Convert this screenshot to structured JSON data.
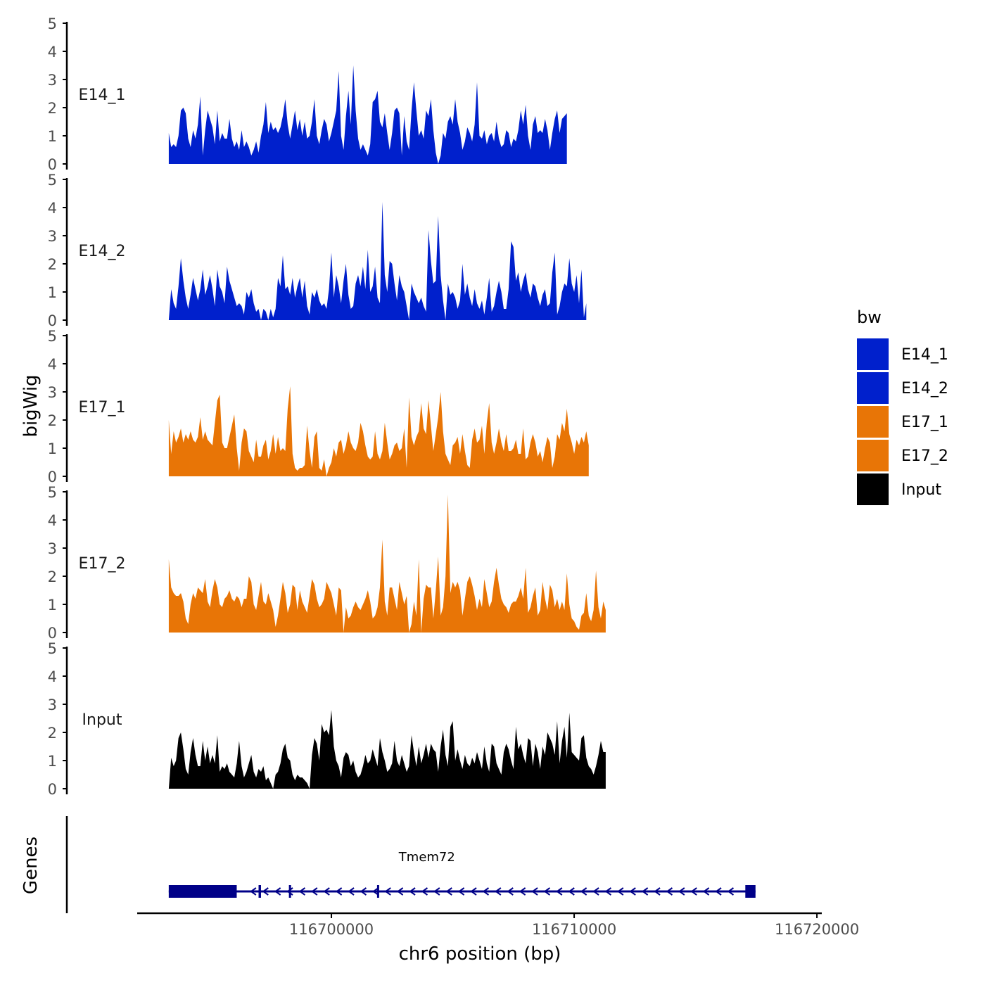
{
  "chart_data": {
    "type": "area",
    "ylabel": "bigWig",
    "genes_label": "Genes",
    "xlabel": "chr6 position (bp)",
    "xlim": [
      116692000,
      116720200
    ],
    "x_ticks": [
      {
        "value": 116700000,
        "label": "116700000"
      },
      {
        "value": 116710000,
        "label": "116710000"
      },
      {
        "value": 116720000,
        "label": "116720000"
      }
    ],
    "ylim": [
      0,
      5
    ],
    "y_ticks": [
      {
        "value": 0,
        "label": "0"
      },
      {
        "value": 1,
        "label": "1"
      },
      {
        "value": 2,
        "label": "2"
      },
      {
        "value": 3,
        "label": "3"
      },
      {
        "value": 4,
        "label": "4"
      },
      {
        "value": 5,
        "label": "5"
      }
    ],
    "x_start": 116693300,
    "x_step": 100,
    "legend": {
      "title": "bw",
      "position": "right"
    },
    "series": [
      {
        "name": "E14_1",
        "color": "#0020CC",
        "values": [
          1.1,
          0.6,
          0.7,
          0.6,
          1.0,
          1.9,
          2.0,
          1.8,
          0.9,
          0.6,
          1.2,
          0.9,
          1.4,
          2.4,
          0.3,
          1.2,
          1.9,
          1.6,
          1.3,
          0.7,
          1.9,
          0.8,
          1.1,
          0.9,
          0.9,
          1.6,
          0.9,
          0.6,
          0.8,
          0.5,
          1.2,
          0.6,
          0.8,
          0.6,
          0.3,
          0.5,
          0.8,
          0.4,
          1.0,
          1.4,
          2.2,
          1.1,
          1.5,
          1.2,
          1.3,
          1.1,
          1.3,
          1.7,
          2.3,
          1.4,
          0.9,
          1.4,
          1.9,
          1.2,
          1.6,
          1.0,
          1.5,
          0.9,
          1.0,
          1.5,
          2.3,
          1.0,
          0.7,
          1.2,
          1.6,
          1.4,
          0.8,
          1.1,
          1.5,
          1.9,
          3.3,
          1.0,
          0.5,
          1.7,
          2.6,
          1.4,
          3.5,
          1.9,
          0.9,
          0.5,
          0.7,
          0.5,
          0.3,
          0.7,
          2.2,
          2.3,
          2.6,
          1.5,
          1.3,
          1.8,
          1.1,
          0.5,
          1.1,
          1.9,
          2.0,
          1.8,
          0.3,
          1.7,
          0.8,
          0.5,
          1.9,
          2.9,
          1.9,
          1.0,
          1.2,
          0.9,
          1.9,
          1.7,
          2.3,
          1.2,
          0.4,
          0.0,
          0.3,
          1.1,
          0.9,
          1.5,
          1.7,
          1.4,
          2.3,
          1.5,
          1.1,
          0.5,
          0.8,
          1.3,
          1.1,
          0.8,
          1.4,
          2.9,
          1.0,
          0.9,
          1.2,
          0.7,
          1.0,
          1.1,
          0.8,
          1.5,
          0.9,
          0.6,
          0.7,
          1.2,
          1.1,
          0.6,
          0.9,
          0.8,
          1.2,
          1.9,
          1.4,
          2.1,
          1.0,
          0.5,
          1.4,
          1.7,
          1.1,
          1.2,
          1.1,
          1.6,
          1.2,
          0.5,
          1.1,
          1.6,
          1.9,
          1.1,
          1.6,
          1.7,
          1.8
        ]
      },
      {
        "name": "E14_2",
        "color": "#0020CC",
        "values": [
          0.0,
          1.1,
          0.6,
          0.4,
          1.2,
          2.2,
          1.4,
          0.8,
          0.4,
          0.9,
          1.5,
          1.1,
          0.7,
          1.1,
          1.8,
          0.9,
          1.2,
          1.6,
          1.1,
          0.5,
          1.8,
          1.2,
          1.0,
          0.6,
          1.9,
          1.4,
          1.1,
          0.8,
          0.5,
          0.6,
          0.5,
          0.2,
          1.0,
          0.8,
          1.1,
          0.6,
          0.3,
          0.4,
          0.0,
          0.4,
          0.3,
          0.0,
          0.4,
          0.1,
          0.4,
          1.5,
          1.2,
          2.3,
          1.1,
          1.2,
          0.9,
          1.5,
          0.8,
          1.2,
          1.5,
          0.8,
          1.4,
          0.5,
          0.2,
          1.0,
          0.8,
          1.1,
          0.7,
          0.5,
          0.6,
          0.4,
          1.1,
          2.4,
          0.8,
          1.6,
          1.2,
          0.6,
          1.4,
          2.0,
          0.9,
          0.4,
          0.5,
          1.3,
          1.6,
          1.2,
          1.9,
          1.1,
          2.5,
          1.0,
          1.2,
          1.9,
          0.8,
          0.6,
          4.2,
          1.6,
          1.0,
          2.1,
          2.0,
          1.3,
          0.7,
          1.6,
          1.2,
          1.0,
          0.5,
          0.0,
          1.3,
          1.0,
          0.8,
          0.6,
          0.8,
          0.5,
          0.3,
          3.2,
          2.1,
          1.3,
          1.4,
          3.7,
          1.6,
          0.7,
          0.0,
          1.3,
          0.9,
          1.0,
          0.8,
          0.4,
          0.7,
          2.0,
          0.9,
          1.3,
          0.8,
          0.5,
          1.1,
          0.6,
          0.4,
          0.7,
          0.2,
          0.8,
          1.5,
          0.3,
          0.5,
          1.0,
          1.4,
          1.0,
          0.4,
          0.4,
          1.1,
          2.8,
          2.6,
          1.4,
          1.7,
          1.0,
          1.4,
          1.7,
          1.1,
          0.8,
          1.3,
          1.2,
          0.8,
          0.5,
          0.9,
          1.1,
          0.5,
          0.6,
          1.7,
          2.4,
          0.2,
          0.5,
          1.0,
          1.3,
          1.2,
          2.2,
          1.3,
          1.0,
          1.6,
          0.6,
          1.8,
          0.1,
          0.6
        ]
      },
      {
        "name": "E17_1",
        "color": "#E87506",
        "values": [
          2.0,
          0.8,
          1.6,
          1.2,
          1.4,
          1.7,
          1.2,
          1.5,
          1.3,
          1.6,
          1.3,
          1.2,
          1.4,
          2.1,
          1.3,
          1.6,
          1.3,
          1.2,
          1.1,
          1.9,
          2.7,
          2.9,
          1.2,
          1.0,
          1.0,
          1.4,
          1.8,
          2.2,
          1.0,
          0.2,
          1.2,
          1.7,
          1.6,
          0.9,
          0.7,
          0.5,
          1.3,
          0.7,
          0.7,
          1.1,
          1.3,
          0.6,
          0.9,
          1.5,
          0.8,
          1.4,
          0.9,
          1.0,
          0.9,
          2.4,
          3.2,
          0.8,
          0.3,
          0.2,
          0.3,
          0.3,
          0.4,
          1.8,
          0.9,
          0.3,
          1.4,
          1.6,
          0.3,
          0.2,
          0.6,
          0.0,
          0.3,
          0.5,
          1.0,
          0.7,
          1.2,
          1.3,
          0.8,
          1.1,
          1.6,
          1.2,
          1.0,
          0.9,
          1.2,
          1.9,
          1.6,
          1.1,
          0.7,
          0.6,
          0.7,
          1.6,
          0.8,
          0.6,
          0.9,
          1.9,
          1.2,
          0.6,
          0.8,
          1.1,
          1.2,
          0.9,
          1.0,
          1.7,
          0.3,
          2.8,
          1.4,
          1.1,
          1.4,
          1.6,
          2.6,
          1.7,
          1.5,
          2.7,
          1.8,
          0.9,
          1.5,
          2.1,
          3.0,
          1.6,
          0.8,
          0.6,
          0.4,
          1.1,
          1.2,
          1.4,
          0.8,
          1.5,
          0.9,
          0.4,
          0.3,
          1.3,
          1.7,
          1.2,
          1.3,
          1.8,
          0.8,
          1.9,
          2.6,
          1.2,
          0.8,
          1.2,
          1.7,
          1.2,
          0.9,
          1.5,
          0.9,
          0.9,
          1.0,
          1.3,
          0.8,
          0.8,
          1.7,
          0.6,
          0.7,
          1.2,
          1.5,
          1.2,
          0.7,
          0.9,
          0.5,
          1.0,
          1.4,
          1.2,
          0.3,
          0.7,
          1.5,
          1.3,
          1.9,
          1.6,
          2.4,
          1.5,
          1.2,
          0.8,
          1.3,
          1.1,
          1.4,
          1.2,
          1.6,
          1.1
        ]
      },
      {
        "name": "E17_2",
        "color": "#E87506",
        "values": [
          2.6,
          1.6,
          1.4,
          1.3,
          1.3,
          1.4,
          1.1,
          0.5,
          0.3,
          1.0,
          1.4,
          1.2,
          1.6,
          1.5,
          1.4,
          1.9,
          1.1,
          0.9,
          1.5,
          1.9,
          1.6,
          1.0,
          0.9,
          1.2,
          1.3,
          1.5,
          1.2,
          1.1,
          1.3,
          1.2,
          0.9,
          1.2,
          1.2,
          2.0,
          1.8,
          1.0,
          0.8,
          1.3,
          1.8,
          1.1,
          1.0,
          1.4,
          1.1,
          0.8,
          0.2,
          0.6,
          1.2,
          1.8,
          1.4,
          0.7,
          1.0,
          1.7,
          1.6,
          0.8,
          1.5,
          1.1,
          0.9,
          0.7,
          1.3,
          1.9,
          1.7,
          1.2,
          0.9,
          1.0,
          1.2,
          1.8,
          1.6,
          1.4,
          1.0,
          0.6,
          1.6,
          1.5,
          0.0,
          0.9,
          0.5,
          0.6,
          0.9,
          1.1,
          0.9,
          0.8,
          1.0,
          1.2,
          1.5,
          1.1,
          0.5,
          0.6,
          0.9,
          1.6,
          3.3,
          1.1,
          0.6,
          1.6,
          1.6,
          1.2,
          0.8,
          1.8,
          1.4,
          1.0,
          1.3,
          0.0,
          0.3,
          1.1,
          0.6,
          2.6,
          0.0,
          1.2,
          1.7,
          1.6,
          1.6,
          0.5,
          1.5,
          2.7,
          0.6,
          0.9,
          2.0,
          4.9,
          1.4,
          1.8,
          1.6,
          1.8,
          1.5,
          0.6,
          1.2,
          1.8,
          2.0,
          1.7,
          1.3,
          0.8,
          1.2,
          0.9,
          1.9,
          1.4,
          0.9,
          1.1,
          1.8,
          2.3,
          1.7,
          1.2,
          1.0,
          0.9,
          0.7,
          1.0,
          1.1,
          1.1,
          1.3,
          1.6,
          1.2,
          2.3,
          0.7,
          0.9,
          1.3,
          1.6,
          0.6,
          0.8,
          1.8,
          1.2,
          0.8,
          1.7,
          1.5,
          0.9,
          1.2,
          0.8,
          1.1,
          0.8,
          2.1,
          1.0,
          0.5,
          0.4,
          0.2,
          0.1,
          0.6,
          0.7,
          1.4,
          0.6,
          0.4,
          0.8,
          2.2,
          0.9,
          0.5,
          1.1,
          0.8
        ]
      },
      {
        "name": "Input",
        "color": "#000000",
        "values": [
          0.0,
          1.1,
          0.8,
          1.0,
          1.8,
          2.0,
          1.4,
          0.7,
          0.5,
          1.3,
          1.8,
          1.2,
          0.8,
          0.8,
          1.7,
          1.0,
          1.5,
          0.9,
          1.2,
          0.9,
          1.9,
          0.6,
          0.8,
          0.7,
          0.9,
          0.6,
          0.5,
          0.4,
          0.9,
          1.7,
          0.8,
          0.4,
          0.6,
          0.9,
          1.2,
          0.6,
          0.4,
          0.7,
          0.6,
          0.8,
          0.3,
          0.4,
          0.2,
          0.0,
          0.5,
          0.6,
          0.9,
          1.4,
          1.6,
          1.1,
          1.0,
          0.5,
          0.3,
          0.5,
          0.4,
          0.4,
          0.3,
          0.2,
          0.0,
          1.2,
          1.8,
          1.6,
          1.0,
          2.3,
          2.0,
          2.1,
          1.9,
          2.8,
          1.5,
          1.0,
          0.8,
          0.4,
          1.1,
          1.3,
          1.2,
          0.8,
          1.0,
          0.6,
          0.4,
          0.5,
          0.8,
          1.2,
          0.9,
          1.0,
          1.4,
          1.1,
          0.8,
          1.8,
          1.3,
          1.0,
          0.6,
          0.7,
          0.9,
          1.7,
          1.0,
          0.8,
          1.2,
          0.9,
          0.6,
          0.8,
          1.9,
          1.3,
          0.8,
          1.5,
          0.9,
          1.2,
          1.6,
          1.1,
          1.6,
          1.4,
          1.3,
          0.6,
          1.5,
          2.1,
          1.2,
          0.8,
          2.2,
          2.4,
          1.0,
          1.4,
          1.0,
          0.7,
          1.2,
          0.9,
          0.8,
          1.1,
          0.9,
          1.3,
          1.0,
          0.7,
          1.5,
          0.9,
          0.6,
          1.6,
          1.5,
          0.9,
          0.7,
          0.5,
          1.3,
          1.6,
          1.4,
          1.0,
          0.7,
          2.2,
          1.4,
          1.6,
          1.2,
          0.9,
          1.8,
          1.7,
          0.8,
          1.6,
          1.3,
          0.7,
          1.5,
          1.2,
          2.0,
          1.8,
          1.6,
          1.2,
          2.4,
          0.9,
          1.7,
          2.2,
          1.1,
          2.7,
          1.3,
          1.2,
          1.1,
          1.0,
          1.8,
          1.9,
          1.1,
          0.8,
          0.7,
          0.5,
          0.8,
          1.2,
          1.7,
          1.3,
          1.3
        ]
      }
    ],
    "gene_track": {
      "gene_name": "Tmem72",
      "strand": "-",
      "color": "#000088",
      "start": 116693300,
      "end": 116717470,
      "exons": [
        {
          "start": 116693300,
          "end": 116696100
        },
        {
          "start": 116697000,
          "end": 116697100
        },
        {
          "start": 116698250,
          "end": 116698300
        },
        {
          "start": 116701880,
          "end": 116701920
        },
        {
          "start": 116717050,
          "end": 116717470
        }
      ]
    }
  }
}
